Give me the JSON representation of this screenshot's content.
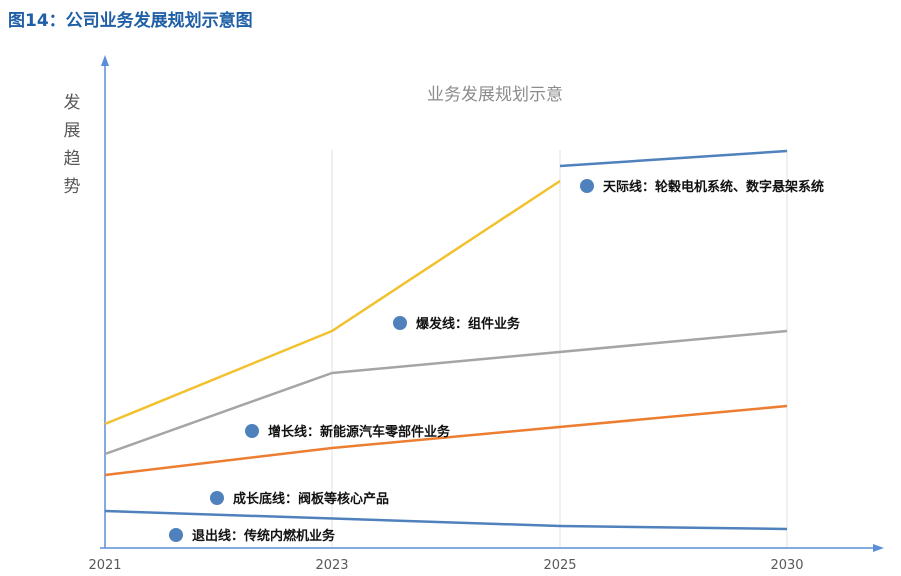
{
  "figure_title": "图14：公司业务发展规划示意图",
  "chart_data": {
    "type": "line",
    "title": "业务发展规划示意",
    "ylabel": "发展趋势",
    "xlabel": "",
    "categories": [
      "2021",
      "2023",
      "2025",
      "2030"
    ],
    "grid": "vertical",
    "series": [
      {
        "color": "#4f81bd",
        "values": [
          0.12,
          null,
          0.07,
          0.06
        ]
      },
      {
        "color": "#ed7d31",
        "values": [
          0.24,
          0.33,
          null,
          0.47
        ]
      },
      {
        "color": "#a5a5a5",
        "values": [
          0.31,
          0.58,
          null,
          0.72
        ]
      },
      {
        "color": "#f2c12e",
        "values": [
          0.41,
          0.72,
          1.22,
          null
        ]
      },
      {
        "color": "#4f81bd",
        "values": [
          null,
          null,
          1.27,
          1.32
        ]
      }
    ],
    "annotations": [
      {
        "label": "天际线：轮毂电机系统、数字悬架系统",
        "color": "#4f81bd"
      },
      {
        "label": "爆发线：组件业务",
        "color": "#4f81bd"
      },
      {
        "label": "增长线：新能源汽车零部件业务",
        "color": "#4f81bd"
      },
      {
        "label": "成长底线：阀板等核心产品",
        "color": "#4f81bd"
      },
      {
        "label": "退出线：传统内燃机业务",
        "color": "#4f81bd"
      }
    ]
  }
}
